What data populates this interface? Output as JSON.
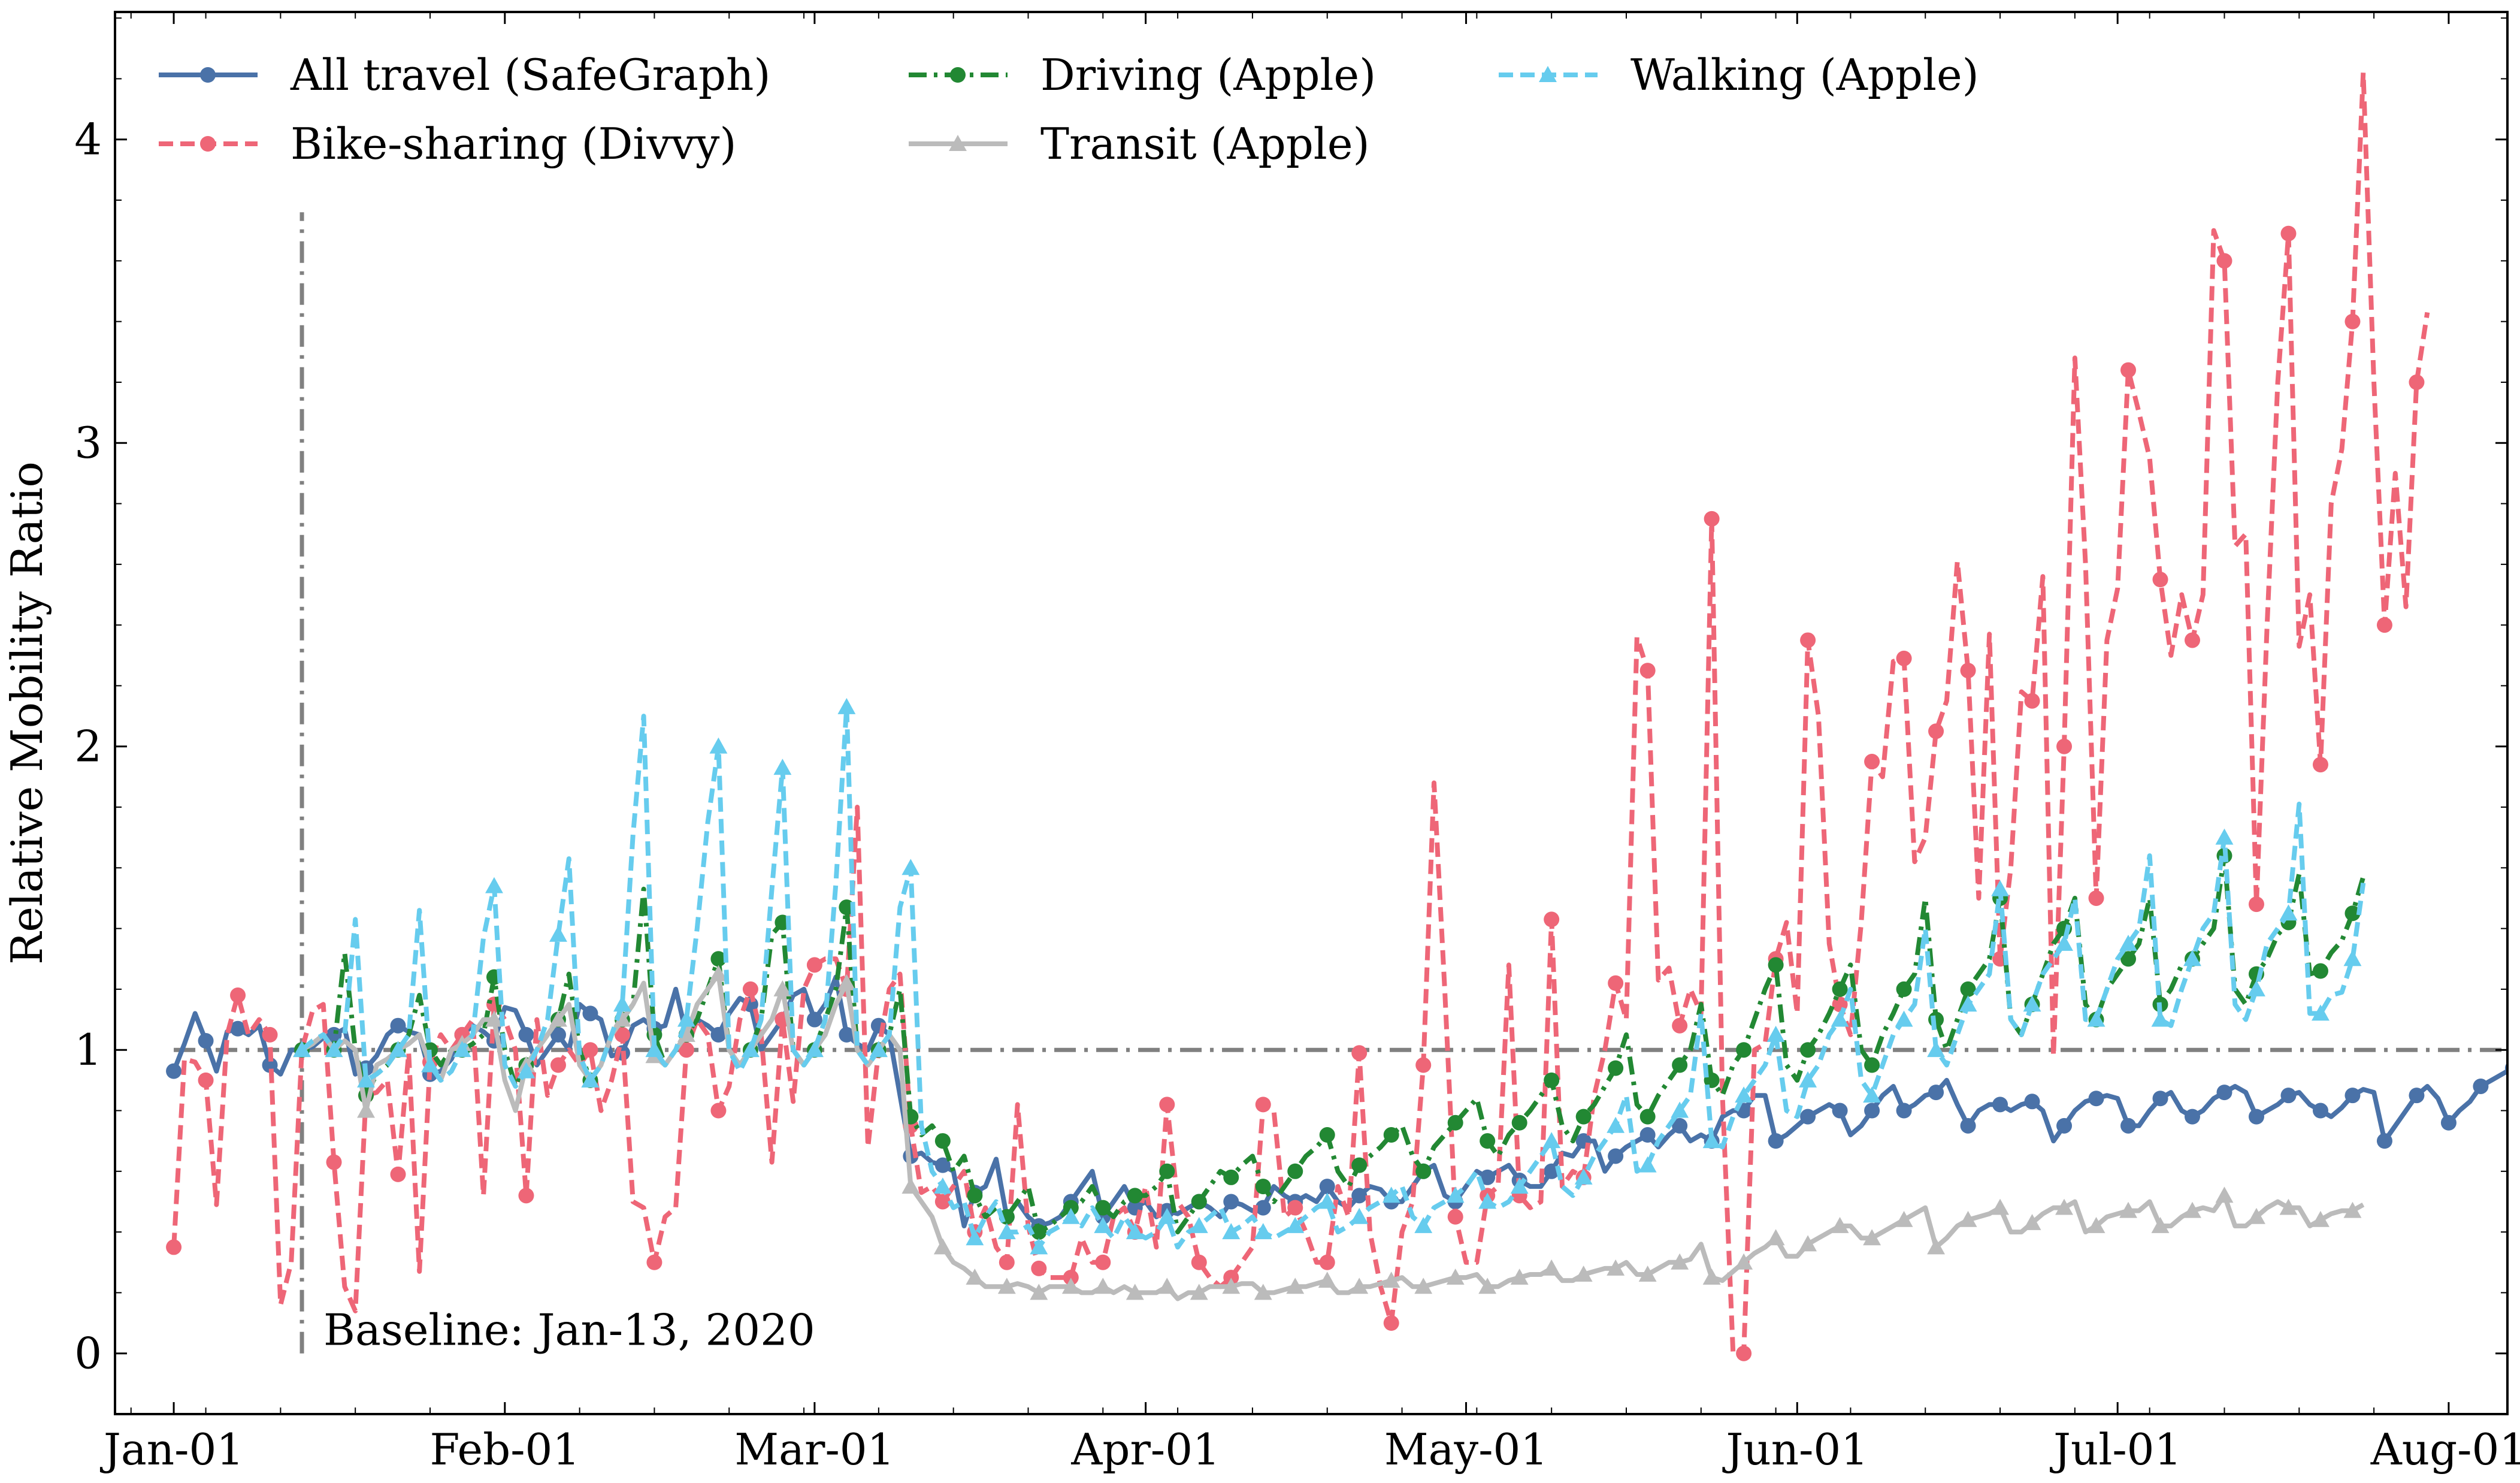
{
  "chart_data": {
    "type": "line",
    "ylabel": "Relative Mobility Ratio",
    "xlabel": "",
    "ylim": [
      -0.2,
      4.42
    ],
    "x_range_days": [
      -5.5,
      218.5
    ],
    "x_ticks": [
      {
        "label": "Jan-01",
        "day": 0
      },
      {
        "label": "Feb-01",
        "day": 31
      },
      {
        "label": "Mar-01",
        "day": 60
      },
      {
        "label": "Apr-01",
        "day": 91
      },
      {
        "label": "May-01",
        "day": 121
      },
      {
        "label": "Jun-01",
        "day": 152
      },
      {
        "label": "Jul-01",
        "day": 182
      },
      {
        "label": "Aug-01",
        "day": 213
      }
    ],
    "y_ticks": [
      0,
      1,
      2,
      3,
      4
    ],
    "grid": false,
    "legend_position": "top-left",
    "baseline_value": 1,
    "annotation": {
      "text": "Baseline: Jan-13, 2020",
      "day": 12
    },
    "series": [
      {
        "name": "All travel (SafeGraph)",
        "color": "#4a72a8",
        "dash": "solid",
        "marker": "circle",
        "start_day": 0,
        "values": [
          0.93,
          1.02,
          1.12,
          1.03,
          0.93,
          1.06,
          1.07,
          1.05,
          1.08,
          0.95,
          0.92,
          1.0,
          1.0,
          1.01,
          1.04,
          1.05,
          1.07,
          0.92,
          0.94,
          0.98,
          1.05,
          1.08,
          1.06,
          1.05,
          0.92,
          0.93,
          0.97,
          1.05,
          1.08,
          1.06,
          1.03,
          1.14,
          1.13,
          1.05,
          0.95,
          1.0,
          1.05,
          1.0,
          1.15,
          1.12,
          1.1,
          0.98,
          0.99,
          1.08,
          1.1,
          1.07,
          1.08,
          1.2,
          1.05,
          1.1,
          1.08,
          1.05,
          1.12,
          1.17,
          1.15,
          1.0,
          1.05,
          1.1,
          1.18,
          1.2,
          1.1,
          1.15,
          1.24,
          1.05,
          1.02,
          1.0,
          1.08,
          1.05,
          0.85,
          0.65,
          0.66,
          0.63,
          0.62,
          0.6,
          0.42,
          0.53,
          0.55,
          0.64,
          0.45,
          0.5,
          0.45,
          0.42,
          0.43,
          0.45,
          0.5,
          0.55,
          0.6,
          0.45,
          0.5,
          0.55,
          0.48,
          0.5,
          0.45,
          0.47,
          0.46,
          0.48,
          0.5,
          0.48,
          0.45,
          0.5,
          0.49,
          0.47,
          0.48,
          0.55,
          0.52,
          0.5,
          0.52,
          0.5,
          0.55,
          0.5,
          0.48,
          0.52,
          0.55,
          0.54,
          0.5,
          0.5,
          0.55,
          0.6,
          0.62,
          0.52,
          0.5,
          0.55,
          0.6,
          0.58,
          0.6,
          0.62,
          0.57,
          0.55,
          0.55,
          0.6,
          0.66,
          0.65,
          0.7,
          0.7,
          0.6,
          0.65,
          0.68,
          0.7,
          0.72,
          0.68,
          0.72,
          0.75,
          0.7,
          0.72,
          0.7,
          0.78,
          0.8,
          0.8,
          0.85,
          0.85,
          0.7,
          0.72,
          0.75,
          0.78,
          0.8,
          0.82,
          0.8,
          0.72,
          0.75,
          0.8,
          0.85,
          0.88,
          0.8,
          0.82,
          0.85,
          0.86,
          0.9,
          0.82,
          0.75,
          0.8,
          0.82,
          0.82,
          0.8,
          0.82,
          0.83,
          0.8,
          0.7,
          0.75,
          0.8,
          0.83,
          0.84,
          0.85,
          0.84,
          0.75,
          0.75,
          0.8,
          0.84,
          0.86,
          0.8,
          0.78,
          0.8,
          0.84,
          0.86,
          0.88,
          0.86,
          0.78,
          0.8,
          0.82,
          0.85,
          0.86,
          0.82,
          0.8,
          0.78,
          0.81,
          0.85,
          0.87,
          0.86,
          0.7,
          0.75,
          0.8,
          0.85,
          0.88,
          0.84,
          0.76,
          0.8,
          0.83,
          0.88,
          0.9,
          0.92,
          0.94
        ]
      },
      {
        "name": "Bike-sharing (Divvy)",
        "color": "#ee6677",
        "dash": "dashed",
        "marker": "circle",
        "start_day": 0,
        "values": [
          0.35,
          0.97,
          0.96,
          0.9,
          0.49,
          1.05,
          1.18,
          1.05,
          1.1,
          1.05,
          0.16,
          0.3,
          1.0,
          1.13,
          1.15,
          0.63,
          0.22,
          0.14,
          0.85,
          0.86,
          0.9,
          0.59,
          0.99,
          0.27,
          0.96,
          1.05,
          1.0,
          1.05,
          1.1,
          0.52,
          1.15,
          1.1,
          1.0,
          0.52,
          1.1,
          0.85,
          0.95,
          1.0,
          0.95,
          1.0,
          0.8,
          0.9,
          1.05,
          0.5,
          0.48,
          0.3,
          0.45,
          0.48,
          1.0,
          1.1,
          1.05,
          0.8,
          0.88,
          1.1,
          1.2,
          1.05,
          0.63,
          1.1,
          0.83,
          1.2,
          1.28,
          1.3,
          1.3,
          1.2,
          1.8,
          0.68,
          1.0,
          1.2,
          1.25,
          0.75,
          0.53,
          0.55,
          0.5,
          0.55,
          0.6,
          0.4,
          0.48,
          0.35,
          0.3,
          0.82,
          0.42,
          0.28,
          0.25,
          0.25,
          0.25,
          0.38,
          0.3,
          0.3,
          0.45,
          0.48,
          0.4,
          0.55,
          0.35,
          0.82,
          0.5,
          0.45,
          0.3,
          0.25,
          0.22,
          0.25,
          0.3,
          0.35,
          0.82,
          0.8,
          0.45,
          0.48,
          0.4,
          0.3,
          0.3,
          0.55,
          0.45,
          0.99,
          0.4,
          0.22,
          0.1,
          0.4,
          0.5,
          0.95,
          1.88,
          1.2,
          0.45,
          0.3,
          0.3,
          0.52,
          0.55,
          1.28,
          0.52,
          0.48,
          0.5,
          1.43,
          0.55,
          0.6,
          0.58,
          0.85,
          1.0,
          1.22,
          1.1,
          2.36,
          2.25,
          1.23,
          1.27,
          1.08,
          1.2,
          1.12,
          2.75,
          0.85,
          0.0,
          0.0,
          1.0,
          1.02,
          1.3,
          1.42,
          1.12,
          2.35,
          2.1,
          1.35,
          1.15,
          1.05,
          1.42,
          1.95,
          1.9,
          2.28,
          2.29,
          1.62,
          1.7,
          2.05,
          2.15,
          2.61,
          2.25,
          1.5,
          2.37,
          1.3,
          1.6,
          2.18,
          2.15,
          2.56,
          0.98,
          2.0,
          3.28,
          2.6,
          1.5,
          2.35,
          2.52,
          3.24,
          3.1,
          2.95,
          2.55,
          2.3,
          2.5,
          2.35,
          2.5,
          3.7,
          3.6,
          2.66,
          2.7,
          1.48,
          2.4,
          3.2,
          3.69,
          2.33,
          2.5,
          1.94,
          2.8,
          2.98,
          3.4,
          4.22,
          3.2,
          2.4,
          2.9,
          2.46,
          3.2,
          3.43
        ]
      },
      {
        "name": "Driving (Apple)",
        "color": "#228833",
        "dash": "dashdot",
        "marker": "circle",
        "start_day": 12,
        "values": [
          1.0,
          1.02,
          1.05,
          1.0,
          1.32,
          1.0,
          0.85,
          0.92,
          0.95,
          1.0,
          1.05,
          1.18,
          1.0,
          0.95,
          1.0,
          1.0,
          1.02,
          1.05,
          1.24,
          1.0,
          0.88,
          0.95,
          1.0,
          1.05,
          1.1,
          1.25,
          1.0,
          0.9,
          0.95,
          1.05,
          1.1,
          1.15,
          1.53,
          1.05,
          0.95,
          1.0,
          1.05,
          1.1,
          1.2,
          1.3,
          1.0,
          0.95,
          1.0,
          1.1,
          1.38,
          1.42,
          1.0,
          0.95,
          1.0,
          1.1,
          1.2,
          1.47,
          1.0,
          0.95,
          1.0,
          1.05,
          1.2,
          0.78,
          0.72,
          0.75,
          0.7,
          0.6,
          0.65,
          0.52,
          0.45,
          0.48,
          0.45,
          0.5,
          0.55,
          0.4,
          0.42,
          0.45,
          0.48,
          0.5,
          0.55,
          0.48,
          0.45,
          0.5,
          0.52,
          0.52,
          0.55,
          0.6,
          0.4,
          0.45,
          0.5,
          0.55,
          0.6,
          0.58,
          0.62,
          0.65,
          0.55,
          0.5,
          0.55,
          0.6,
          0.65,
          0.68,
          0.72,
          0.6,
          0.55,
          0.62,
          0.65,
          0.68,
          0.72,
          0.75,
          0.65,
          0.6,
          0.68,
          0.72,
          0.76,
          0.8,
          0.84,
          0.7,
          0.65,
          0.72,
          0.76,
          0.8,
          0.85,
          0.9,
          0.75,
          0.7,
          0.78,
          0.82,
          0.88,
          0.94,
          1.05,
          0.82,
          0.78,
          0.85,
          0.9,
          0.95,
          1.0,
          1.15,
          0.9,
          0.85,
          0.95,
          1.0,
          1.1,
          1.2,
          1.28,
          0.95,
          0.9,
          1.0,
          1.05,
          1.12,
          1.2,
          1.28,
          1.0,
          0.95,
          1.05,
          1.12,
          1.2,
          1.25,
          1.5,
          1.1,
          1.0,
          1.1,
          1.2,
          1.25,
          1.3,
          1.5,
          1.1,
          1.05,
          1.15,
          1.25,
          1.35,
          1.4,
          1.5,
          1.15,
          1.1,
          1.2,
          1.25,
          1.3,
          1.35,
          1.5,
          1.15,
          1.2,
          1.28,
          1.3,
          1.35,
          1.4,
          1.64,
          1.2,
          1.15,
          1.25,
          1.3,
          1.38,
          1.42,
          1.58,
          1.25,
          1.26,
          1.32,
          1.36,
          1.45,
          1.57
        ]
      },
      {
        "name": "Transit (Apple)",
        "color": "#bbbbbb",
        "dash": "solid",
        "marker": "triangle",
        "start_day": 12,
        "values": [
          1.0,
          1.02,
          1.05,
          1.0,
          1.03,
          1.0,
          0.8,
          0.95,
          0.97,
          1.0,
          1.02,
          1.05,
          0.95,
          0.9,
          1.0,
          1.02,
          1.05,
          1.1,
          1.1,
          0.9,
          0.8,
          0.95,
          1.0,
          1.05,
          1.1,
          1.15,
          0.95,
          0.9,
          0.95,
          1.05,
          1.1,
          1.15,
          1.22,
          0.98,
          0.95,
          1.0,
          1.05,
          1.15,
          1.2,
          1.25,
          1.0,
          0.95,
          1.0,
          1.05,
          1.1,
          1.2,
          1.0,
          0.95,
          1.0,
          1.05,
          1.15,
          1.22,
          1.0,
          0.95,
          1.0,
          1.05,
          1.0,
          0.55,
          0.5,
          0.45,
          0.35,
          0.3,
          0.28,
          0.25,
          0.22,
          0.22,
          0.22,
          0.23,
          0.22,
          0.2,
          0.22,
          0.22,
          0.22,
          0.2,
          0.2,
          0.22,
          0.2,
          0.22,
          0.2,
          0.2,
          0.2,
          0.22,
          0.18,
          0.2,
          0.2,
          0.22,
          0.22,
          0.22,
          0.23,
          0.23,
          0.2,
          0.2,
          0.21,
          0.22,
          0.22,
          0.23,
          0.24,
          0.2,
          0.2,
          0.22,
          0.22,
          0.23,
          0.24,
          0.25,
          0.22,
          0.22,
          0.23,
          0.24,
          0.25,
          0.25,
          0.26,
          0.22,
          0.22,
          0.24,
          0.25,
          0.26,
          0.26,
          0.28,
          0.24,
          0.24,
          0.26,
          0.27,
          0.28,
          0.28,
          0.3,
          0.26,
          0.26,
          0.28,
          0.3,
          0.3,
          0.31,
          0.36,
          0.25,
          0.24,
          0.27,
          0.3,
          0.33,
          0.35,
          0.38,
          0.32,
          0.32,
          0.36,
          0.38,
          0.4,
          0.42,
          0.42,
          0.38,
          0.38,
          0.4,
          0.42,
          0.44,
          0.46,
          0.48,
          0.35,
          0.38,
          0.42,
          0.44,
          0.45,
          0.46,
          0.48,
          0.4,
          0.4,
          0.43,
          0.46,
          0.48,
          0.48,
          0.5,
          0.4,
          0.42,
          0.45,
          0.46,
          0.47,
          0.47,
          0.5,
          0.42,
          0.42,
          0.45,
          0.47,
          0.48,
          0.47,
          0.52,
          0.42,
          0.42,
          0.45,
          0.48,
          0.5,
          0.48,
          0.48,
          0.42,
          0.44,
          0.46,
          0.47,
          0.47,
          0.49
        ]
      },
      {
        "name": "Walking (Apple)",
        "color": "#66ccee",
        "dash": "dashed",
        "marker": "triangle",
        "start_day": 12,
        "values": [
          1.0,
          1.03,
          1.05,
          1.0,
          1.05,
          1.43,
          0.9,
          0.92,
          0.95,
          1.0,
          1.05,
          1.46,
          0.95,
          0.9,
          0.93,
          1.0,
          1.05,
          1.37,
          1.54,
          0.95,
          0.88,
          0.93,
          1.0,
          1.1,
          1.38,
          1.63,
          0.98,
          0.9,
          0.95,
          1.05,
          1.15,
          1.71,
          2.1,
          1.0,
          0.95,
          1.0,
          1.1,
          1.4,
          1.75,
          2.0,
          1.0,
          0.93,
          1.0,
          1.1,
          1.53,
          1.93,
          1.0,
          0.95,
          1.0,
          1.1,
          1.55,
          2.13,
          1.0,
          0.95,
          1.0,
          1.05,
          1.47,
          1.6,
          0.75,
          0.6,
          0.55,
          0.48,
          0.5,
          0.38,
          0.45,
          0.5,
          0.4,
          0.4,
          0.42,
          0.35,
          0.4,
          0.42,
          0.45,
          0.42,
          0.48,
          0.42,
          0.38,
          0.45,
          0.4,
          0.38,
          0.4,
          0.45,
          0.35,
          0.4,
          0.42,
          0.45,
          0.48,
          0.4,
          0.42,
          0.45,
          0.4,
          0.38,
          0.4,
          0.42,
          0.45,
          0.48,
          0.5,
          0.4,
          0.42,
          0.45,
          0.48,
          0.5,
          0.52,
          0.55,
          0.45,
          0.42,
          0.48,
          0.5,
          0.52,
          0.55,
          0.6,
          0.5,
          0.48,
          0.5,
          0.55,
          0.6,
          0.65,
          0.7,
          0.55,
          0.52,
          0.58,
          0.65,
          0.7,
          0.75,
          0.85,
          0.6,
          0.62,
          0.7,
          0.75,
          0.8,
          0.85,
          1.12,
          0.7,
          0.68,
          0.78,
          0.85,
          0.9,
          0.95,
          1.05,
          0.8,
          0.78,
          0.9,
          0.95,
          1.05,
          1.1,
          1.2,
          0.9,
          0.85,
          0.95,
          1.05,
          1.1,
          1.15,
          1.4,
          1.0,
          0.95,
          1.05,
          1.15,
          1.2,
          1.25,
          1.53,
          1.1,
          1.05,
          1.15,
          1.25,
          1.3,
          1.35,
          1.5,
          1.1,
          1.1,
          1.2,
          1.3,
          1.35,
          1.4,
          1.64,
          1.1,
          1.08,
          1.2,
          1.3,
          1.4,
          1.45,
          1.7,
          1.15,
          1.1,
          1.2,
          1.35,
          1.4,
          1.45,
          1.81,
          1.12,
          1.12,
          1.18,
          1.19,
          1.3,
          1.55
        ]
      }
    ]
  }
}
